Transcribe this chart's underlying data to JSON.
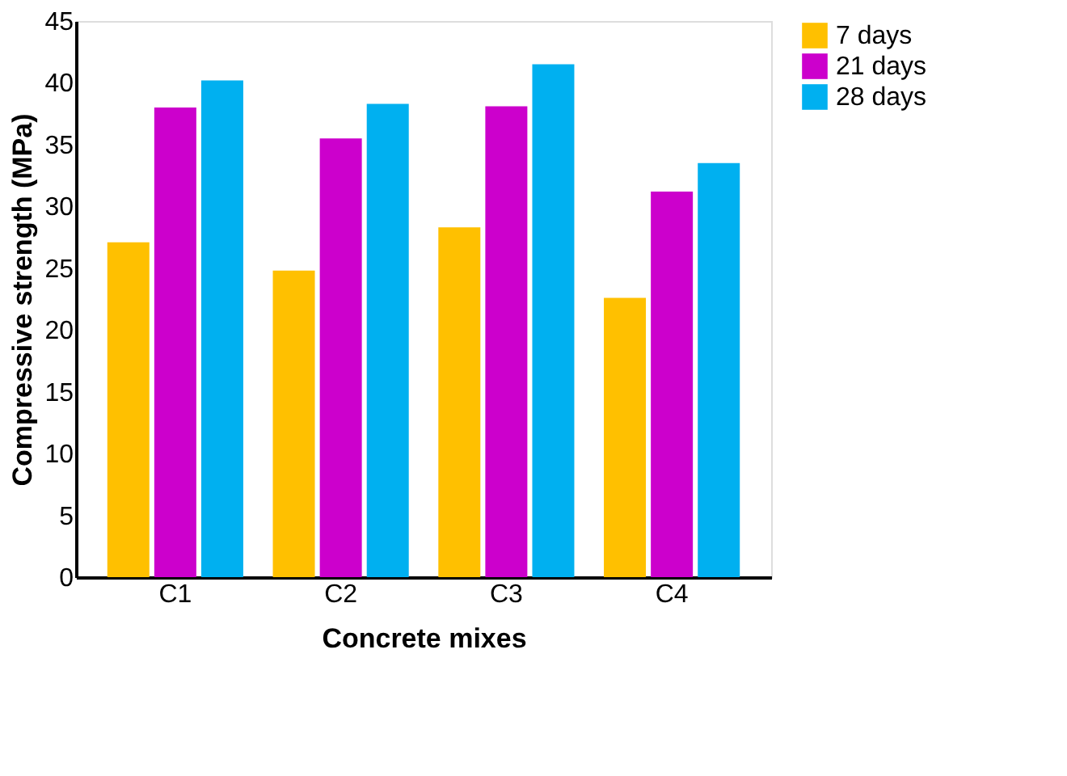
{
  "chart_data": {
    "type": "bar",
    "xlabel": "Concrete mixes",
    "ylabel": "Compressive strength (MPa)",
    "categories": [
      "C1",
      "C2",
      "C3",
      "C4"
    ],
    "series": [
      {
        "name": "7 days",
        "color": "#ffc000",
        "values": [
          27.1,
          24.8,
          28.3,
          22.6
        ]
      },
      {
        "name": "21 days",
        "color": "#cc00cc",
        "values": [
          38.0,
          35.5,
          38.1,
          31.2
        ]
      },
      {
        "name": "28 days",
        "color": "#00b0f0",
        "values": [
          40.2,
          38.3,
          41.5,
          33.5
        ]
      }
    ],
    "ylim": [
      0,
      45
    ],
    "yticks": [
      0,
      5,
      10,
      15,
      20,
      25,
      30,
      35,
      40,
      45
    ],
    "grid": false,
    "legend": "right"
  }
}
